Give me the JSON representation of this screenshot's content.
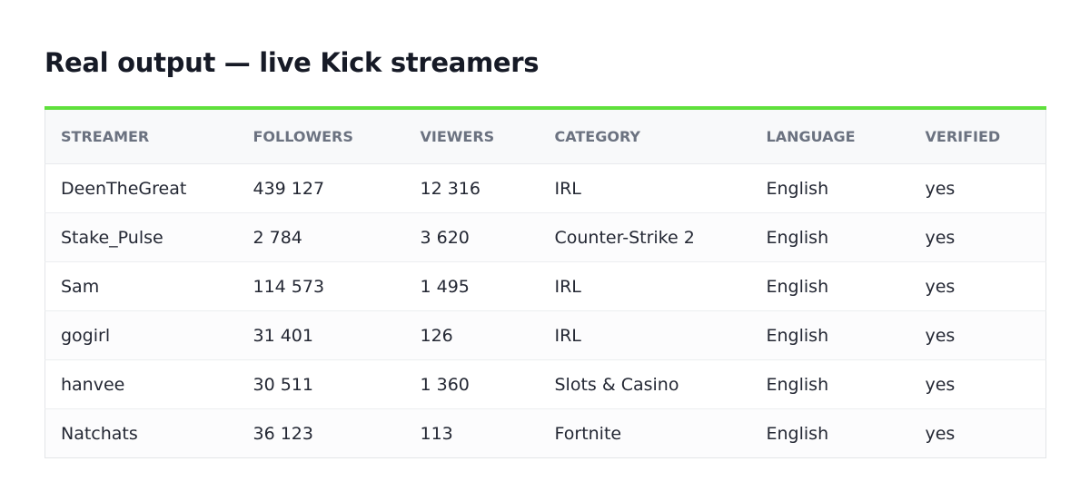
{
  "title": "Real output — live Kick streamers",
  "table": {
    "headers": [
      "STREAMER",
      "FOLLOWERS",
      "VIEWERS",
      "CATEGORY",
      "LANGUAGE",
      "VERIFIED"
    ],
    "rows": [
      [
        "DeenTheGreat",
        "439 127",
        "12 316",
        "IRL",
        "English",
        "yes"
      ],
      [
        "Stake_Pulse",
        "2 784",
        "3 620",
        "Counter-Strike 2",
        "English",
        "yes"
      ],
      [
        "Sam",
        "114 573",
        "1 495",
        "IRL",
        "English",
        "yes"
      ],
      [
        "gogirl",
        "31 401",
        "126",
        "IRL",
        "English",
        "yes"
      ],
      [
        "hanvee",
        "30 511",
        "1 360",
        "Slots & Casino",
        "English",
        "yes"
      ],
      [
        "Natchats",
        "36 123",
        "113",
        "Fortnite",
        "English",
        "yes"
      ]
    ]
  }
}
